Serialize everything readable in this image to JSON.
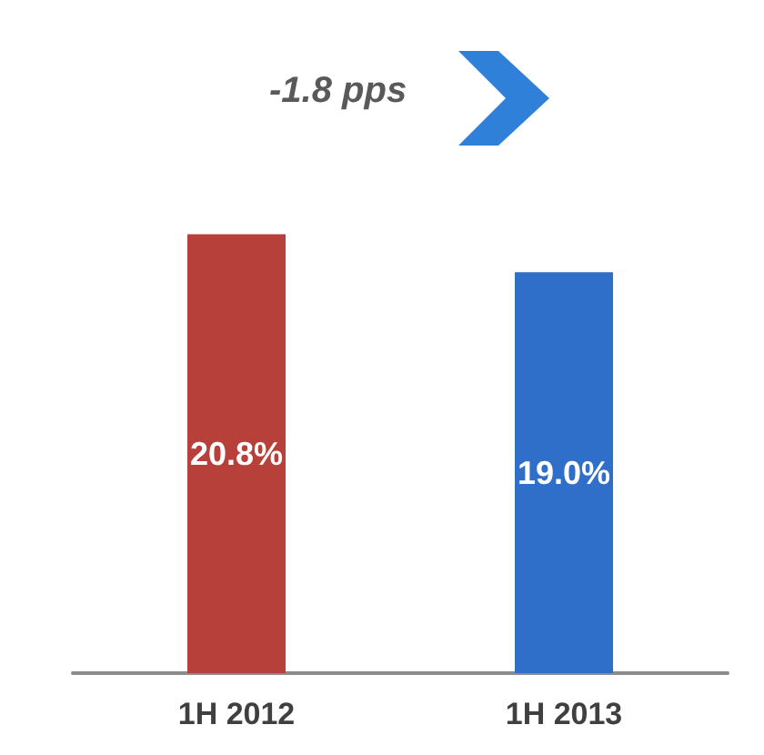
{
  "chart_data": {
    "type": "bar",
    "categories": [
      "1H 2012",
      "1H 2013"
    ],
    "values": [
      20.8,
      19.0
    ],
    "colors": [
      "#b8403a",
      "#2f6fc9"
    ],
    "value_labels": [
      "20.8%",
      "19.0%"
    ],
    "annotations": [
      "-1.8 pps"
    ]
  }
}
